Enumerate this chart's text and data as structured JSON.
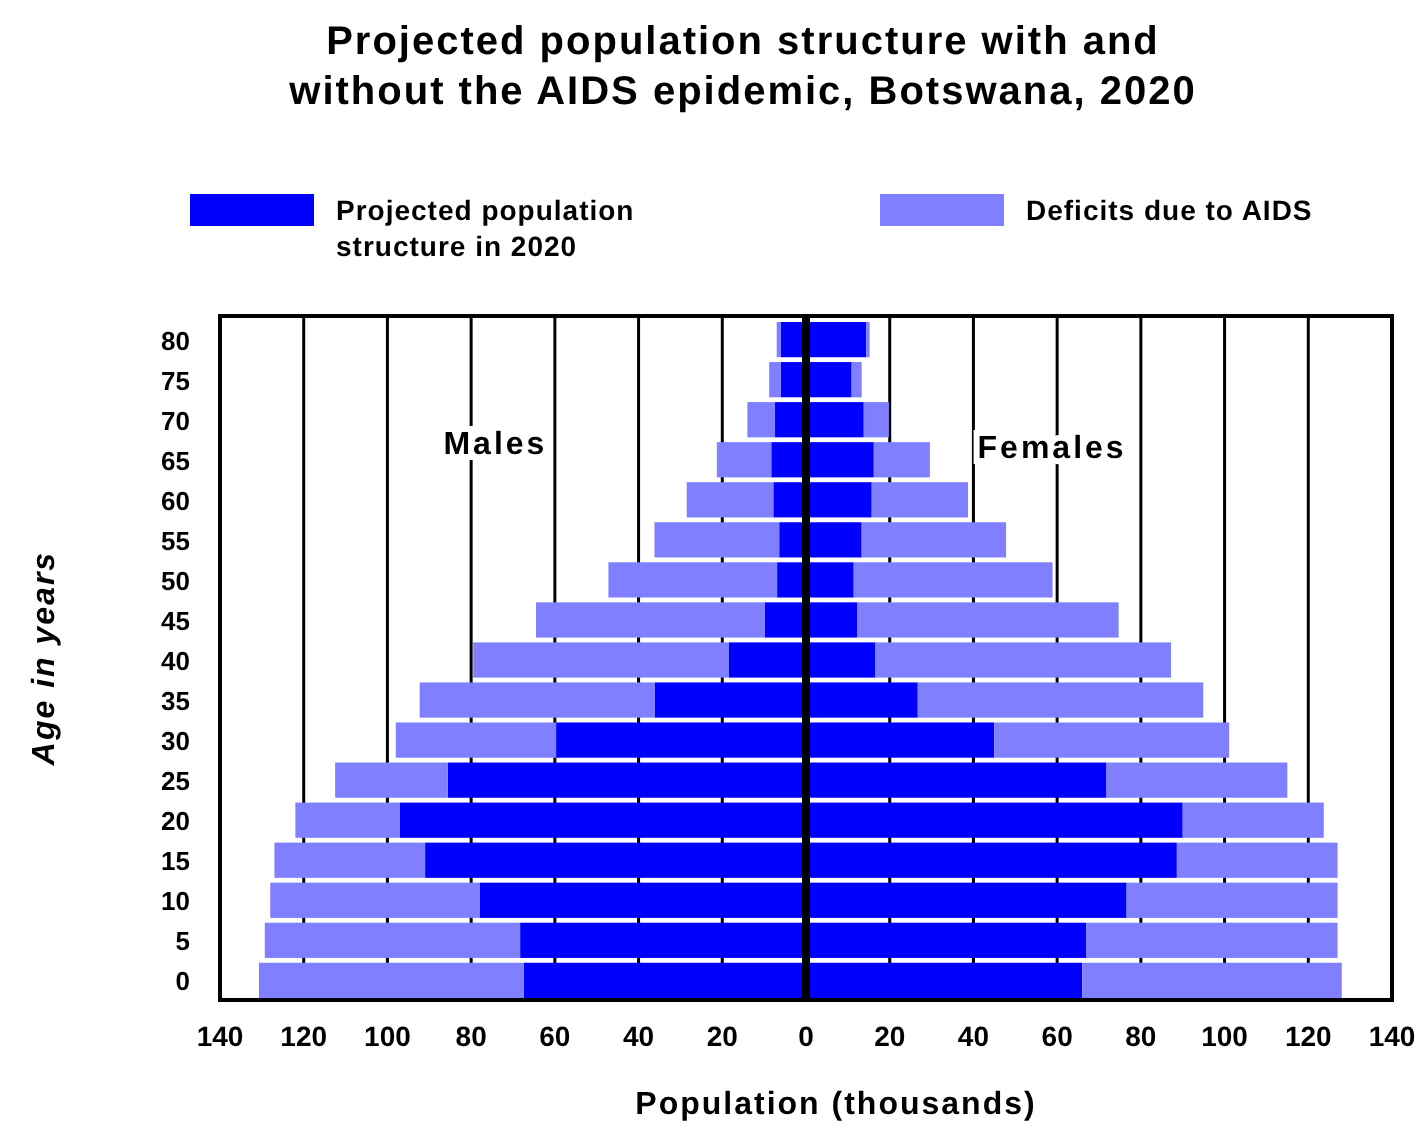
{
  "chart_data": {
    "type": "bar",
    "orientation": "horizontal",
    "stacked": true,
    "title": "Projected population structure with and without the AIDS epidemic, Botswana, 2020",
    "xlabel": "Population (thousands)",
    "ylabel": "Age in years",
    "categories": [
      "80",
      "75",
      "70",
      "65",
      "60",
      "55",
      "50",
      "45",
      "40",
      "35",
      "30",
      "25",
      "20",
      "15",
      "10",
      "5",
      "0"
    ],
    "series": [
      {
        "name": "Projected population structure in 2020",
        "color": "#0000ff",
        "values": [
          -6,
          -6,
          -7.4,
          -8.3,
          -7.8,
          -6.4,
          -6.9,
          -9.8,
          -18.4,
          -36.2,
          -59.7,
          -85.6,
          -97,
          -91,
          -78,
          -68.3,
          -67.4
        ]
      },
      {
        "name": "Deficits due to AIDS",
        "color": "#8080ff",
        "values": [
          -1,
          -2.8,
          -6.6,
          -13,
          -20.7,
          -29.8,
          -40.3,
          -54.7,
          -61.1,
          -56.1,
          -38.3,
          -26.9,
          -25,
          -36,
          -50,
          -61,
          -63.3
        ]
      },
      {
        "color": "#0000ff",
        "values": [
          14.4,
          10.9,
          13.8,
          16.2,
          15.7,
          13.3,
          11.4,
          12.3,
          16.6,
          26.7,
          45,
          71.8,
          90,
          88.6,
          76.6,
          67,
          66
        ]
      },
      {
        "color": "#8080ff",
        "values": [
          0.8,
          2.4,
          6,
          13.4,
          23,
          34.5,
          47.5,
          62.4,
          70.6,
          68.2,
          56.1,
          43.2,
          33.7,
          38.4,
          50.4,
          60,
          62
        ]
      }
    ],
    "xlim": [
      -140,
      140
    ],
    "xticks": [
      {
        "value": -140,
        "label": "140"
      },
      {
        "value": -120,
        "label": "120"
      },
      {
        "value": -100,
        "label": "100"
      },
      {
        "value": -80,
        "label": "80"
      },
      {
        "value": -60,
        "label": "60"
      },
      {
        "value": -40,
        "label": "40"
      },
      {
        "value": -20,
        "label": "20"
      },
      0,
      20,
      40,
      60,
      80,
      100,
      120,
      140
    ],
    "grid": "x",
    "legend": "top",
    "annotations": [
      "Males",
      "Females"
    ]
  }
}
